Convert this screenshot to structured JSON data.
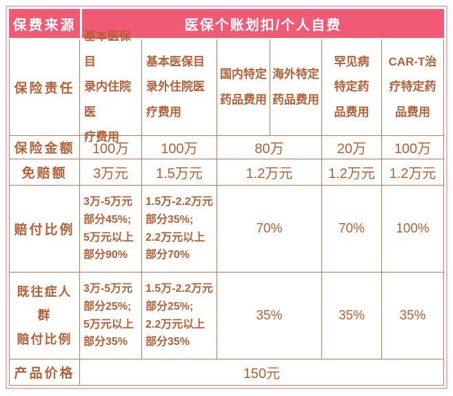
{
  "colors": {
    "header_pink": "#F15A74",
    "text_brown": "#B65F36",
    "grid_line_brown": "#BE7A4F",
    "outer_border_pink": "#F6B1BE"
  },
  "table": {
    "source_row": {
      "label": "保费来源",
      "value": "医保个账划扣/个人自费"
    },
    "liability_row": {
      "label": "保险责任",
      "columns": [
        "基本医保目\n录内住院医\n疗费用",
        "基本医保目\n录外住院医\n疗费用",
        "国内特定\n药品费用",
        "海外特定\n药品费用",
        "罕见病\n特定药\n品费用",
        "CAR-T治\n疗特定药\n品费用"
      ]
    },
    "amount_row": {
      "label": "保险金额",
      "cells": [
        "100万",
        "100万",
        "80万",
        "20万",
        "100万"
      ]
    },
    "deductible_row": {
      "label": "免赔额",
      "cells": [
        "3万元",
        "1.5万元",
        "1.2万元",
        "1.2万元",
        "1.2万元"
      ]
    },
    "payout_row": {
      "label": "赔付比例",
      "cells": [
        "3万-5万元\n部分45%;\n5万元以上\n部分90%",
        "1.5万-2.2万元\n部分35%;\n2.2万元以上\n部分70%",
        "70%",
        "70%",
        "100%"
      ]
    },
    "preexisting_row": {
      "label": "既往症人群\n赔付比例",
      "cells": [
        "3万-5万元\n部分25%;\n5万元以上\n部分35%",
        "1.5万-2.2万元\n部分25%;\n2.2万元以上\n部分35%",
        "35%",
        "35%",
        "35%"
      ]
    },
    "price_row": {
      "label": "产品价格",
      "value": "150元"
    }
  }
}
